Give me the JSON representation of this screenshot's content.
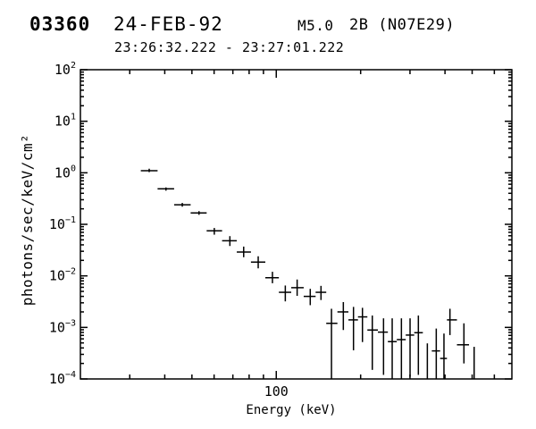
{
  "header": {
    "flare_id": "03360",
    "date": "24-FEB-92",
    "goes_class": "M5.0",
    "optical_class_position": "2B (N07E29)",
    "time_interval": "23:26:32.222 - 23:27:01.222"
  },
  "colors": {
    "foreground": "#000000",
    "background": "#ffffff"
  },
  "chart_data": {
    "type": "scatter",
    "title": "03360 24-FEB-92 M5.0 2B (N07E29) 23:26:32.222 - 23:27:01.222",
    "xlabel": "Energy (keV)",
    "ylabel": "photons/sec/keV/cm²",
    "x_scale": "log",
    "y_scale": "log",
    "xlim": [
      20,
      693
    ],
    "ylim": [
      0.0001,
      100
    ],
    "grid": false,
    "legend": "none",
    "x_major_ticks": [
      {
        "value": 100,
        "label": "100"
      }
    ],
    "x_minor_ticks": [
      30,
      40,
      50,
      60,
      70,
      80,
      90,
      200,
      300,
      400,
      500,
      600
    ],
    "y_major_ticks": [
      {
        "value": 100,
        "base": "10",
        "exp": "2"
      },
      {
        "value": 10,
        "base": "10",
        "exp": "1"
      },
      {
        "value": 1,
        "base": "10",
        "exp": "0"
      },
      {
        "value": 0.1,
        "base": "10",
        "exp": "−1"
      },
      {
        "value": 0.01,
        "base": "10",
        "exp": "−2"
      },
      {
        "value": 0.001,
        "base": "10",
        "exp": "−3"
      },
      {
        "value": 0.0001,
        "base": "10",
        "exp": "−4"
      }
    ],
    "y_minor_mantissas": [
      2,
      3,
      4,
      5,
      6,
      7,
      8,
      9
    ],
    "points": [
      {
        "e": 35.2,
        "v": 1.1,
        "vlo": 1.03,
        "vhi": 1.2,
        "cap": true
      },
      {
        "e": 40.4,
        "v": 0.49,
        "vlo": 0.45,
        "vhi": 0.52,
        "cap": true
      },
      {
        "e": 46.2,
        "v": 0.24,
        "vlo": 0.22,
        "vhi": 0.26,
        "cap": true
      },
      {
        "e": 53.0,
        "v": 0.166,
        "vlo": 0.153,
        "vhi": 0.18,
        "cap": true
      },
      {
        "e": 60.1,
        "v": 0.075,
        "vlo": 0.063,
        "vhi": 0.085,
        "cap": true
      },
      {
        "e": 68.3,
        "v": 0.048,
        "vlo": 0.038,
        "vhi": 0.059,
        "cap": true
      },
      {
        "e": 76.5,
        "v": 0.029,
        "vlo": 0.023,
        "vhi": 0.037,
        "cap": true
      },
      {
        "e": 86.2,
        "v": 0.0185,
        "vlo": 0.014,
        "vhi": 0.024,
        "cap": true
      },
      {
        "e": 96.9,
        "v": 0.0092,
        "vlo": 0.0072,
        "vhi": 0.012,
        "cap": true
      },
      {
        "e": 107.7,
        "v": 0.0048,
        "vlo": 0.0032,
        "vhi": 0.0065,
        "cap": true
      },
      {
        "e": 118.7,
        "v": 0.0059,
        "vlo": 0.0041,
        "vhi": 0.0085,
        "cap": true
      },
      {
        "e": 132.2,
        "v": 0.004,
        "vlo": 0.0027,
        "vhi": 0.0056,
        "cap": true
      },
      {
        "e": 144.4,
        "v": 0.0048,
        "vlo": 0.0034,
        "vhi": 0.0064,
        "cap": true
      },
      {
        "e": 157.4,
        "v": 0.0012,
        "vlo": 0.0001,
        "vhi": 0.0023,
        "cap": true
      },
      {
        "e": 173.5,
        "v": 0.002,
        "vlo": 0.00089,
        "vhi": 0.0031,
        "cap": true
      },
      {
        "e": 188.6,
        "v": 0.0014,
        "vlo": 0.00036,
        "vhi": 0.0025,
        "cap": true
      },
      {
        "e": 203.0,
        "v": 0.0016,
        "vlo": 0.00052,
        "vhi": 0.0024,
        "cap": true
      },
      {
        "e": 220.1,
        "v": 0.00089,
        "vlo": 0.00015,
        "vhi": 0.0017,
        "cap": true
      },
      {
        "e": 241.4,
        "v": 0.00081,
        "vlo": 0.00012,
        "vhi": 0.0015,
        "cap": true
      },
      {
        "e": 259.2,
        "v": 0.00053,
        "vlo": 0.0001,
        "vhi": 0.0015,
        "cap": true
      },
      {
        "e": 279.6,
        "v": 0.00058,
        "vlo": 0.0001,
        "vhi": 0.0015,
        "cap": true
      },
      {
        "e": 300.2,
        "v": 0.00071,
        "vlo": 0.00011,
        "vhi": 0.0015,
        "cap": true
      },
      {
        "e": 321.4,
        "v": 0.00079,
        "vlo": 0.00012,
        "vhi": 0.0017,
        "cap": true
      },
      {
        "e": 346.0,
        "v": null,
        "vlo": 0.0001,
        "vhi": 0.00049,
        "cap": false
      },
      {
        "e": 372.3,
        "v": 0.00035,
        "vlo": 0.0001,
        "vhi": 0.00095,
        "cap": true
      },
      {
        "e": 396.6,
        "v": 0.00025,
        "vlo": 0.0001,
        "vhi": 0.00076,
        "cap": true
      },
      {
        "e": 416.6,
        "v": 0.0014,
        "vlo": 0.00071,
        "vhi": 0.0023,
        "cap": true
      },
      {
        "e": 467.3,
        "v": 0.00046,
        "vlo": 0.0002,
        "vhi": 0.0012,
        "cap": true
      },
      {
        "e": 508.2,
        "v": null,
        "vlo": 0.0001,
        "vhi": 0.00042,
        "cap": false
      }
    ]
  }
}
